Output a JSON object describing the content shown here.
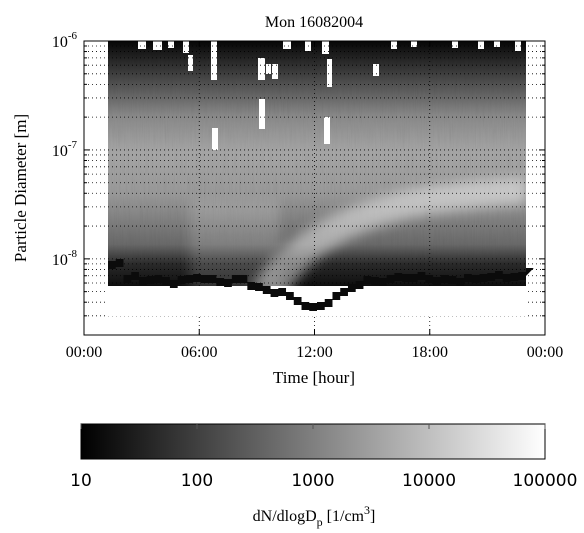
{
  "chart_data": {
    "type": "heatmap",
    "title": "Mon 16082004",
    "xlabel": "Time [hour]",
    "ylabel": "Particle Diameter [m]",
    "x_ticks": [
      "00:00",
      "06:00",
      "12:00",
      "18:00",
      "00:00"
    ],
    "x_range_hours": [
      0,
      24
    ],
    "y_scale": "log",
    "y_range": [
      2e-09,
      1e-06
    ],
    "y_ticks": [
      {
        "base": "10",
        "exp": "-6"
      },
      {
        "base": "10",
        "exp": "-7"
      },
      {
        "base": "10",
        "exp": "-8"
      }
    ],
    "grid": true,
    "colorscale": "gray",
    "colorbar": {
      "label_main": "dN/dlogD",
      "label_sub": "p",
      "label_unit_open": " [1/cm",
      "label_unit_exp": "3",
      "label_unit_close": "]",
      "scale": "log",
      "range": [
        10,
        100000
      ],
      "ticks": [
        "10",
        "100",
        "1000",
        "10000",
        "100000"
      ]
    }
  }
}
